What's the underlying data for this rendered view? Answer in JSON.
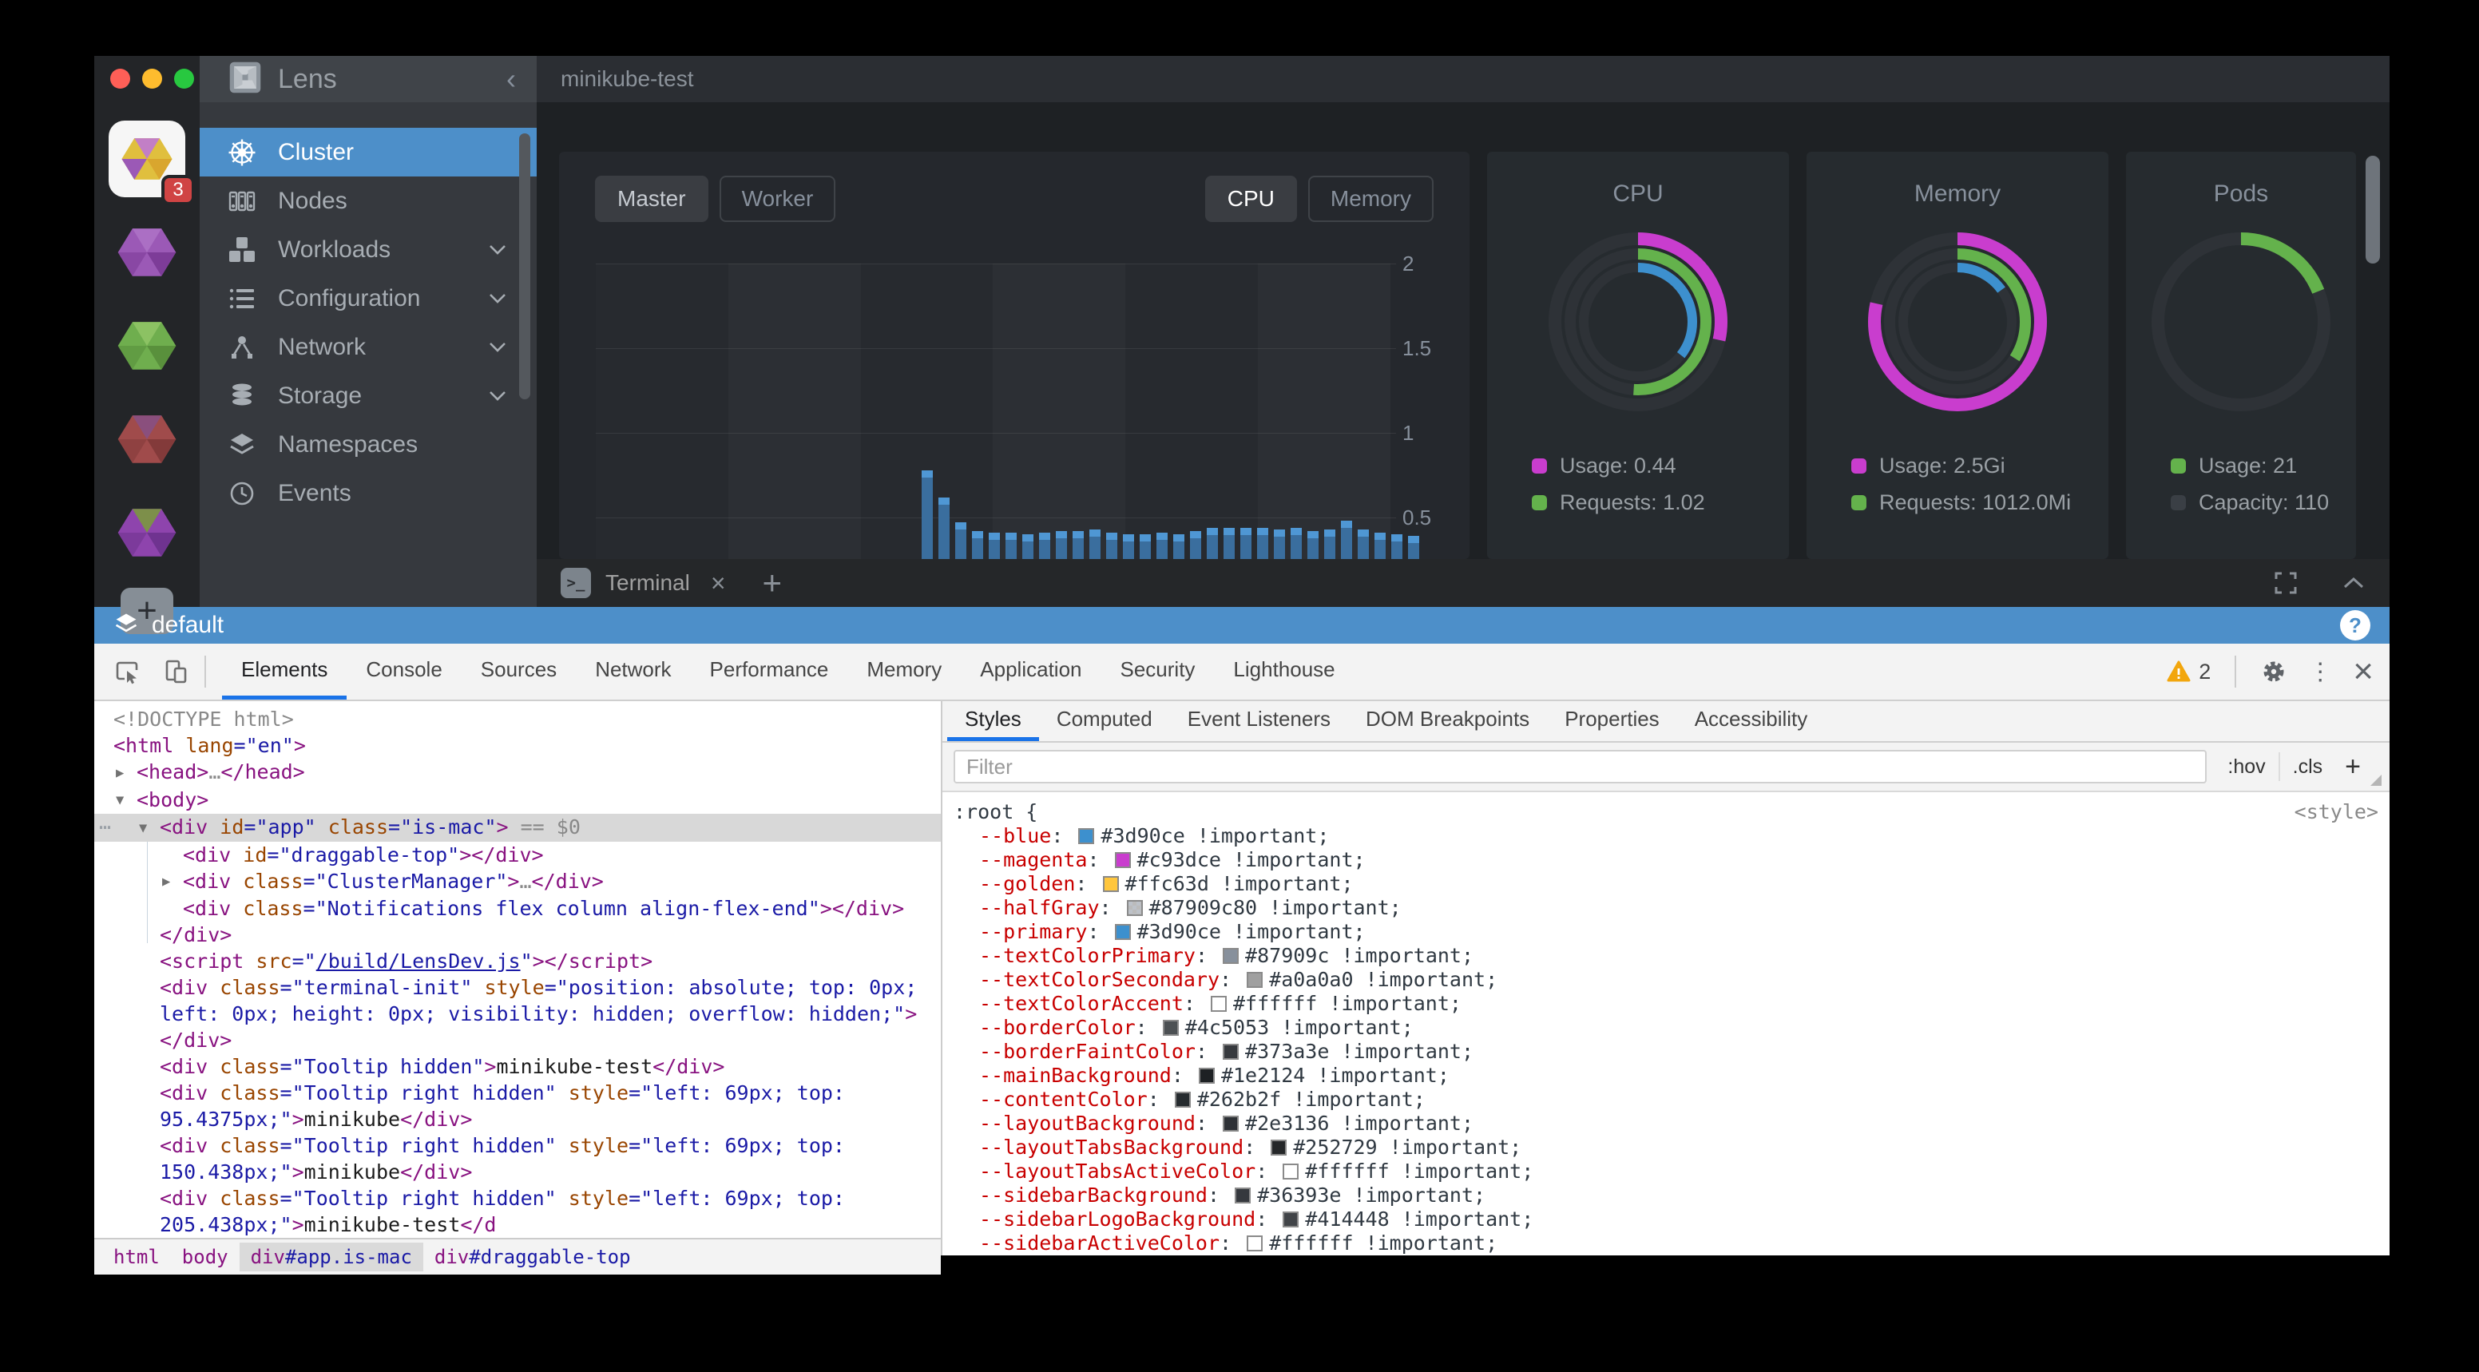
{
  "lens": {
    "titlebar": {
      "title": "minikube-test"
    },
    "header": {
      "brand": "Lens",
      "collapse": "‹"
    },
    "rail": {
      "add_label": "+",
      "clusters": [
        {
          "kind": "active",
          "badge": "3",
          "colors": [
            "#e0bf3e",
            "#c27fc6",
            "#9b59b6",
            "#d9a62e"
          ]
        },
        {
          "kind": "hex",
          "base": "#9b59b6",
          "shade": "#7d3c98",
          "tint": "#ab6fc4"
        },
        {
          "kind": "hex",
          "base": "#6fae4e",
          "shade": "#59903c",
          "tint": "#8cc263"
        },
        {
          "kind": "hex",
          "base": "#a04b4b",
          "shade": "#833a3a",
          "tint": "#8a4f7d"
        },
        {
          "kind": "hex",
          "base": "#8e44ad",
          "shade": "#6f3390",
          "tint": "#7d8f4a"
        }
      ]
    },
    "sidebar": {
      "items": [
        {
          "label": "Cluster",
          "icon": "helm-wheel",
          "active": true,
          "expandable": false
        },
        {
          "label": "Nodes",
          "icon": "nodes",
          "active": false,
          "expandable": false
        },
        {
          "label": "Workloads",
          "icon": "workloads",
          "active": false,
          "expandable": true
        },
        {
          "label": "Configuration",
          "icon": "configuration",
          "active": false,
          "expandable": true
        },
        {
          "label": "Network",
          "icon": "network",
          "active": false,
          "expandable": true
        },
        {
          "label": "Storage",
          "icon": "storage",
          "active": false,
          "expandable": true
        },
        {
          "label": "Namespaces",
          "icon": "namespaces",
          "active": false,
          "expandable": false
        },
        {
          "label": "Events",
          "icon": "events",
          "active": false,
          "expandable": false
        }
      ]
    },
    "toolbar": {
      "node_buttons": [
        {
          "label": "Master",
          "active": true
        },
        {
          "label": "Worker",
          "active": false
        }
      ],
      "metric_buttons": [
        {
          "label": "CPU",
          "active": true
        },
        {
          "label": "Memory",
          "active": false
        }
      ]
    },
    "terminal": {
      "tab_label": "Terminal",
      "close_label": "×",
      "add_label": "+"
    },
    "statusbar": {
      "namespace": "default",
      "help_label": "?"
    }
  },
  "devtools": {
    "tabs": [
      {
        "label": "Elements",
        "active": true
      },
      {
        "label": "Console",
        "active": false
      },
      {
        "label": "Sources",
        "active": false
      },
      {
        "label": "Network",
        "active": false
      },
      {
        "label": "Performance",
        "active": false
      },
      {
        "label": "Memory",
        "active": false
      },
      {
        "label": "Application",
        "active": false
      },
      {
        "label": "Security",
        "active": false
      },
      {
        "label": "Lighthouse",
        "active": false
      }
    ],
    "warning_count": "2",
    "dom_tree": {
      "lines": [
        {
          "level": 0,
          "t": [
            [
              "g",
              "<!DOCTYPE html>"
            ]
          ]
        },
        {
          "level": 0,
          "t": [
            [
              "t",
              "<html"
            ],
            [
              "p",
              " "
            ],
            [
              "a",
              "lang"
            ],
            [
              "v",
              "=\"en\""
            ],
            [
              "t",
              ">"
            ]
          ]
        },
        {
          "level": 1,
          "arrow": "▶",
          "t": [
            [
              "t",
              "<head>"
            ],
            [
              "g",
              "…"
            ],
            [
              "t",
              "</head>"
            ]
          ]
        },
        {
          "level": 1,
          "arrow": "▼",
          "t": [
            [
              "t",
              "<body>"
            ]
          ]
        },
        {
          "level": 2,
          "arrow": "▼",
          "selected": true,
          "t": [
            [
              "t",
              "<div"
            ],
            [
              "p",
              " "
            ],
            [
              "a",
              "id"
            ],
            [
              "v",
              "=\"app\""
            ],
            [
              "p",
              " "
            ],
            [
              "a",
              "class"
            ],
            [
              "v",
              "=\"is-mac\""
            ],
            [
              "t",
              ">"
            ],
            [
              "f",
              " == $0"
            ]
          ]
        },
        {
          "level": 3,
          "t": [
            [
              "t",
              "<div"
            ],
            [
              "p",
              " "
            ],
            [
              "a",
              "id"
            ],
            [
              "v",
              "=\"draggable-top\""
            ],
            [
              "t",
              "></div>"
            ]
          ]
        },
        {
          "level": 3,
          "arrow": "▶",
          "t": [
            [
              "t",
              "<div"
            ],
            [
              "p",
              " "
            ],
            [
              "a",
              "class"
            ],
            [
              "v",
              "=\"ClusterManager\""
            ],
            [
              "t",
              ">"
            ],
            [
              "g",
              "…"
            ],
            [
              "t",
              "</div>"
            ]
          ]
        },
        {
          "level": 3,
          "t": [
            [
              "t",
              "<div"
            ],
            [
              "p",
              " "
            ],
            [
              "a",
              "class"
            ],
            [
              "v",
              "=\"Notifications flex column align-flex-end\""
            ],
            [
              "t",
              "></div>"
            ]
          ]
        },
        {
          "level": 2,
          "t": [
            [
              "t",
              "</div>"
            ]
          ]
        },
        {
          "level": 2,
          "t": [
            [
              "t",
              "<script"
            ],
            [
              "p",
              " "
            ],
            [
              "a",
              "src"
            ],
            [
              "v",
              "=\""
            ],
            [
              "l",
              "/build/LensDev.js"
            ],
            [
              "v",
              "\""
            ],
            [
              "t",
              "></script>"
            ]
          ]
        },
        {
          "level": 2,
          "t": [
            [
              "t",
              "<div"
            ],
            [
              "p",
              " "
            ],
            [
              "a",
              "class"
            ],
            [
              "v",
              "=\"terminal-init\""
            ],
            [
              "p",
              " "
            ],
            [
              "a",
              "style"
            ],
            [
              "v",
              "=\"position: absolute; top: 0px;"
            ]
          ]
        },
        {
          "level": 2,
          "t": [
            [
              "v",
              "left: 0px; height: 0px; visibility: hidden; overflow: hidden;\""
            ],
            [
              "t",
              ">"
            ]
          ]
        },
        {
          "level": 2,
          "t": [
            [
              "t",
              "</div>"
            ]
          ]
        },
        {
          "level": 2,
          "t": [
            [
              "t",
              "<div"
            ],
            [
              "p",
              " "
            ],
            [
              "a",
              "class"
            ],
            [
              "v",
              "=\"Tooltip hidden\""
            ],
            [
              "t",
              ">"
            ],
            [
              "p",
              "minikube-test"
            ],
            [
              "t",
              "</div>"
            ]
          ]
        },
        {
          "level": 2,
          "t": [
            [
              "t",
              "<div"
            ],
            [
              "p",
              " "
            ],
            [
              "a",
              "class"
            ],
            [
              "v",
              "=\"Tooltip right hidden\""
            ],
            [
              "p",
              " "
            ],
            [
              "a",
              "style"
            ],
            [
              "v",
              "=\"left: 69px; top:"
            ]
          ]
        },
        {
          "level": 2,
          "t": [
            [
              "v",
              "95.4375px;\""
            ],
            [
              "t",
              ">"
            ],
            [
              "p",
              "minikube"
            ],
            [
              "t",
              "</div>"
            ]
          ]
        },
        {
          "level": 2,
          "t": [
            [
              "t",
              "<div"
            ],
            [
              "p",
              " "
            ],
            [
              "a",
              "class"
            ],
            [
              "v",
              "=\"Tooltip right hidden\""
            ],
            [
              "p",
              " "
            ],
            [
              "a",
              "style"
            ],
            [
              "v",
              "=\"left: 69px; top:"
            ]
          ]
        },
        {
          "level": 2,
          "t": [
            [
              "v",
              "150.438px;\""
            ],
            [
              "t",
              ">"
            ],
            [
              "p",
              "minikube"
            ],
            [
              "t",
              "</div>"
            ]
          ]
        },
        {
          "level": 2,
          "t": [
            [
              "t",
              "<div"
            ],
            [
              "p",
              " "
            ],
            [
              "a",
              "class"
            ],
            [
              "v",
              "=\"Tooltip right hidden\""
            ],
            [
              "p",
              " "
            ],
            [
              "a",
              "style"
            ],
            [
              "v",
              "=\"left: 69px; top:"
            ]
          ]
        },
        {
          "level": 2,
          "t": [
            [
              "v",
              "205.438px;\""
            ],
            [
              "t",
              ">"
            ],
            [
              "p",
              "minikube-test"
            ],
            [
              "t",
              "</d"
            ]
          ]
        }
      ]
    },
    "breadcrumb": [
      {
        "tag": "html",
        "suffix": "",
        "selected": false
      },
      {
        "tag": "body",
        "suffix": "",
        "selected": false
      },
      {
        "tag": "div",
        "suffix": "#app.is-mac",
        "selected": true
      },
      {
        "tag": "div",
        "suffix": "#draggable-top",
        "selected": false
      }
    ],
    "styles": {
      "tabs": [
        {
          "label": "Styles",
          "active": true
        },
        {
          "label": "Computed",
          "active": false
        },
        {
          "label": "Event Listeners",
          "active": false
        },
        {
          "label": "DOM Breakpoints",
          "active": false
        },
        {
          "label": "Properties",
          "active": false
        },
        {
          "label": "Accessibility",
          "active": false
        }
      ],
      "filter_placeholder": "Filter",
      "pseudo_button": ":hov",
      "cls_button": ".cls",
      "add_button": "+",
      "selector": ":root {",
      "origin": "<style>",
      "important": " !important;",
      "props": [
        {
          "name": "--blue",
          "hex": "#3d90ce"
        },
        {
          "name": "--magenta",
          "hex": "#c93dce"
        },
        {
          "name": "--golden",
          "hex": "#ffc63d"
        },
        {
          "name": "--halfGray",
          "hex": "#87909c80",
          "checker": true
        },
        {
          "name": "--primary",
          "hex": "#3d90ce"
        },
        {
          "name": "--textColorPrimary",
          "hex": "#87909c"
        },
        {
          "name": "--textColorSecondary",
          "hex": "#a0a0a0"
        },
        {
          "name": "--textColorAccent",
          "hex": "#ffffff"
        },
        {
          "name": "--borderColor",
          "hex": "#4c5053"
        },
        {
          "name": "--borderFaintColor",
          "hex": "#373a3e"
        },
        {
          "name": "--mainBackground",
          "hex": "#1e2124"
        },
        {
          "name": "--contentColor",
          "hex": "#262b2f"
        },
        {
          "name": "--layoutBackground",
          "hex": "#2e3136"
        },
        {
          "name": "--layoutTabsBackground",
          "hex": "#252729"
        },
        {
          "name": "--layoutTabsActiveColor",
          "hex": "#ffffff"
        },
        {
          "name": "--sidebarBackground",
          "hex": "#36393e"
        },
        {
          "name": "--sidebarLogoBackground",
          "hex": "#414448"
        },
        {
          "name": "--sidebarActiveColor",
          "hex": "#ffffff"
        }
      ]
    }
  },
  "chart_data": [
    {
      "type": "bar",
      "title": "",
      "xlabel": "",
      "ylabel": "",
      "ylim": [
        0,
        2
      ],
      "yticks": [
        0.5,
        1,
        1.5,
        2
      ],
      "grid": true,
      "legend_position": "none",
      "bar_color": "#3a6e9e",
      "bar_cap_color": "#4f97d4",
      "x_start_fraction": 0.41,
      "values": [
        0.78,
        0.62,
        0.47,
        0.42,
        0.41,
        0.41,
        0.4,
        0.41,
        0.42,
        0.42,
        0.43,
        0.41,
        0.4,
        0.4,
        0.41,
        0.4,
        0.42,
        0.44,
        0.437,
        0.44,
        0.44,
        0.43,
        0.44,
        0.42,
        0.43,
        0.48,
        0.43,
        0.41,
        0.4,
        0.39
      ]
    },
    {
      "type": "donut",
      "title": "CPU",
      "rings": [
        {
          "color": "#c93dce",
          "fraction": 0.285
        },
        {
          "color": "#64b24c",
          "fraction": 0.51
        },
        {
          "color": "#3d90ce",
          "fraction": 0.355
        }
      ],
      "legend": [
        {
          "label": "Usage: 0.44",
          "color": "#c93dce"
        },
        {
          "label": "Requests: 1.02",
          "color": "#64b24c"
        }
      ]
    },
    {
      "type": "donut",
      "title": "Memory",
      "rings": [
        {
          "color": "#c93dce",
          "fraction": 0.785
        },
        {
          "color": "#64b24c",
          "fraction": 0.34
        },
        {
          "color": "#3d90ce",
          "fraction": 0.15
        }
      ],
      "legend": [
        {
          "label": "Usage: 2.5Gi",
          "color": "#c93dce"
        },
        {
          "label": "Requests: 1012.0Mi",
          "color": "#64b24c"
        }
      ]
    },
    {
      "type": "donut",
      "title": "Pods",
      "rings": [
        {
          "color": "#64b24c",
          "fraction": 0.19
        }
      ],
      "legend": [
        {
          "label": "Usage: 21",
          "color": "#64b24c"
        },
        {
          "label": "Capacity: 110",
          "color": "#3a3f45"
        }
      ]
    }
  ]
}
